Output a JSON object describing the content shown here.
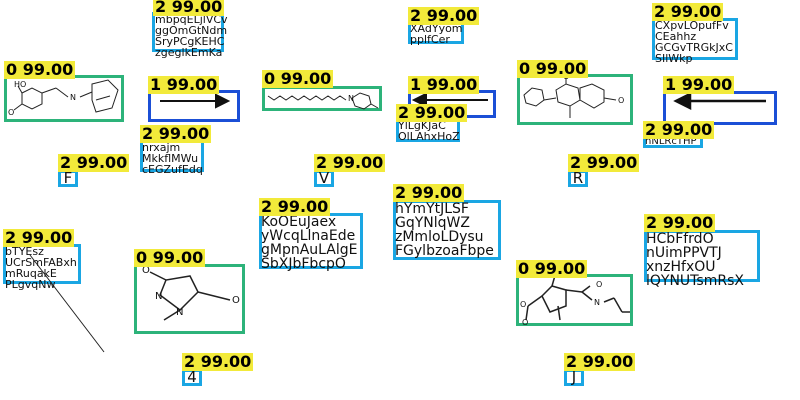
{
  "colors": {
    "tag_bg": "#f2ea3a",
    "molecule_box": "#2db37a",
    "text_box": "#1aa6e3",
    "arrow_box": "#1b4fd6"
  },
  "labels": {
    "l1": "2 99.00",
    "l2": "2 99.00",
    "l3": "2 99.00",
    "l4": "0 99.00",
    "l5": "1 99.00",
    "l6": "0 99.00",
    "l7": "1 99.00",
    "l8": "0 99.00",
    "l9": "1 99.00",
    "l10": "2 99.00",
    "l11": "2 99.00",
    "l12": "2 99.00",
    "l13": "2 99.00",
    "l14": "2 99.00",
    "l15": "2 99.00",
    "l16": "2 99.00",
    "l17": "2 99.00",
    "l18": "2 99.00",
    "l19": "0 99.00",
    "l20": "2 99.00",
    "l21": "0 99.00",
    "l22": "2 99.00",
    "l23": "2 99.00"
  },
  "texts": {
    "t_top_left": "mbpqELjlVCv\nggOmGtNdm\nSryPCgKEHC\nzgeglkEmKa",
    "t_top_mid": "XAdYyom\npplfCer",
    "t_top_right": "CXpvLOpufFv\nCEahhz\nGCGvTRGkJxC\nSIlWkp",
    "t_left_mid": "nrxajm\nMkkflMWu\ncEGZufEdq",
    "t_center_small": "YlLgKJaC\nOlLAhxHoZ",
    "t_right_small": "hNLRcTHP",
    "t_center_big": "KoOEuJaex\nyWcqLlnaEde\ngMpnAuLAlgE\nSbXJbFbcpO",
    "t_center_right_big": "hYmYtJLSF\nGqYNlqWZ\nzMmloLDysu\nFGylbzoaFbpe",
    "t_left_lower": "bTYEsz\nUCrSmFABxh\nmRuqakE\nPLgvqNw",
    "t_right_big": "HCbFfrdO\nnUimPPVTJ\nxnzHfxOU\nlQYNUTsmRsX"
  },
  "glyphs": {
    "g_f": "F",
    "g_v": "V",
    "g_r": "R",
    "g_4": "4",
    "g_j": "J"
  },
  "atoms": {
    "ho": "HO",
    "n_oxime": "N",
    "o_methoxy": "O",
    "n_plus": "N",
    "o_ring1": "O",
    "o_ring2": "O",
    "n_hyd1": "N",
    "n_hyd2": "N",
    "o_hyd1": "O",
    "o_hyd2": "O",
    "n_amide": "N",
    "o_ester": "O",
    "o_keto": "O",
    "o_amide": "O"
  }
}
